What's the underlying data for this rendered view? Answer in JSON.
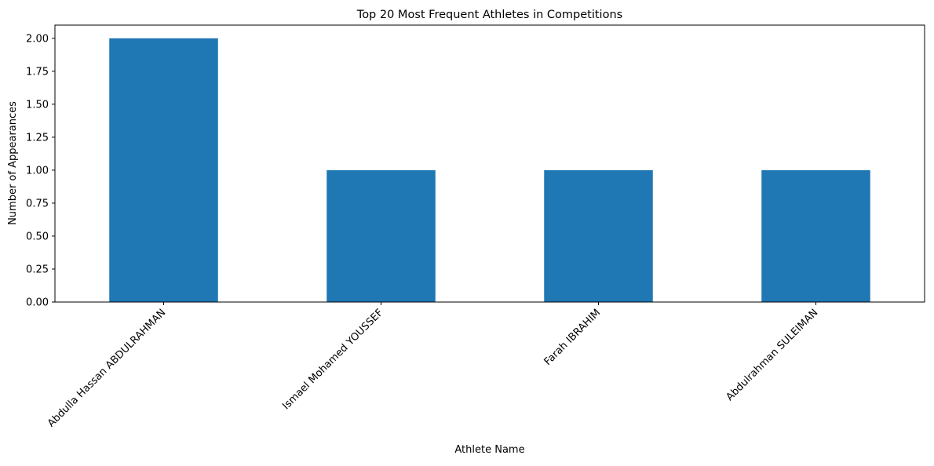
{
  "chart_data": {
    "type": "bar",
    "title": "Top 20 Most Frequent Athletes in Competitions",
    "xlabel": "Athlete Name",
    "ylabel": "Number of Appearances",
    "categories": [
      "Abdulla Hassan ABDULRAHMAN",
      "Ismael Mohamed YOUSSEF",
      "Farah IBRAHIM",
      "Abdulrahman SULEIMAN"
    ],
    "values": [
      2,
      1,
      1,
      1
    ],
    "ylim": [
      0,
      2.1
    ],
    "yticks": [
      0,
      0.25,
      0.5,
      0.75,
      1.0,
      1.25,
      1.5,
      1.75,
      2.0
    ],
    "ytick_labels": [
      "0.00",
      "0.25",
      "0.50",
      "0.75",
      "1.00",
      "1.25",
      "1.50",
      "1.75",
      "2.00"
    ],
    "bar_color": "#1f77b4",
    "grid": false,
    "legend": "none"
  }
}
